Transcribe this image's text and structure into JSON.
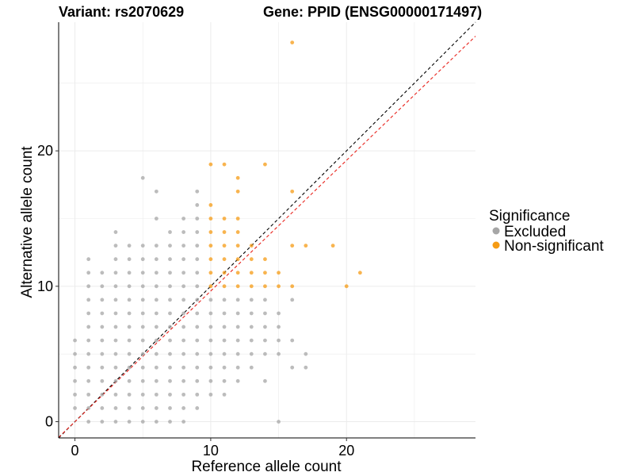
{
  "chart_data": {
    "type": "scatter",
    "title_left": "Variant: rs2070629",
    "title_right": "Gene: PPID (ENSG00000171497)",
    "xlabel": "Reference allele count",
    "ylabel": "Alternative allele count",
    "xlim": [
      -1.2,
      29.5
    ],
    "ylim": [
      -1.2,
      29.5
    ],
    "x_ticks": [
      0,
      10,
      20
    ],
    "y_ticks": [
      0,
      10,
      20
    ],
    "x_tick_labels": [
      "0",
      "10",
      "20"
    ],
    "y_tick_labels": [
      "0",
      "10",
      "20"
    ],
    "grid": true,
    "legend": {
      "title": "Significance",
      "position": "right",
      "entries": [
        {
          "label": "Excluded",
          "color": "#a6a6a6"
        },
        {
          "label": "Non-significant",
          "color": "#f59b14"
        }
      ]
    },
    "reference_lines": [
      {
        "name": "identity",
        "slope": 1,
        "intercept": 0,
        "color": "#000000",
        "dash": true
      },
      {
        "name": "fit",
        "slope": 0.965,
        "intercept": 0,
        "color": "#e8231c",
        "dash": true
      }
    ],
    "series": [
      {
        "name": "Excluded",
        "color": "#a6a6a6",
        "points": [
          [
            0,
            1
          ],
          [
            0,
            2
          ],
          [
            0,
            3
          ],
          [
            0,
            4
          ],
          [
            0,
            5
          ],
          [
            0,
            6
          ],
          [
            1,
            0
          ],
          [
            1,
            1
          ],
          [
            1,
            2
          ],
          [
            1,
            3
          ],
          [
            1,
            4
          ],
          [
            1,
            5
          ],
          [
            1,
            6
          ],
          [
            1,
            7
          ],
          [
            1,
            8
          ],
          [
            1,
            9
          ],
          [
            1,
            10
          ],
          [
            1,
            11
          ],
          [
            1,
            12
          ],
          [
            2,
            0
          ],
          [
            2,
            1
          ],
          [
            2,
            2
          ],
          [
            2,
            3
          ],
          [
            2,
            4
          ],
          [
            2,
            5
          ],
          [
            2,
            6
          ],
          [
            2,
            7
          ],
          [
            2,
            8
          ],
          [
            2,
            9
          ],
          [
            2,
            10
          ],
          [
            2,
            11
          ],
          [
            3,
            0
          ],
          [
            3,
            1
          ],
          [
            3,
            2
          ],
          [
            3,
            3
          ],
          [
            3,
            4
          ],
          [
            3,
            5
          ],
          [
            3,
            6
          ],
          [
            3,
            7
          ],
          [
            3,
            8
          ],
          [
            3,
            9
          ],
          [
            3,
            10
          ],
          [
            3,
            11
          ],
          [
            3,
            12
          ],
          [
            3,
            13
          ],
          [
            3,
            14
          ],
          [
            4,
            0
          ],
          [
            4,
            1
          ],
          [
            4,
            2
          ],
          [
            4,
            3
          ],
          [
            4,
            4
          ],
          [
            4,
            5
          ],
          [
            4,
            6
          ],
          [
            4,
            7
          ],
          [
            4,
            8
          ],
          [
            4,
            9
          ],
          [
            4,
            10
          ],
          [
            4,
            11
          ],
          [
            4,
            12
          ],
          [
            4,
            13
          ],
          [
            5,
            0
          ],
          [
            5,
            1
          ],
          [
            5,
            2
          ],
          [
            5,
            3
          ],
          [
            5,
            4
          ],
          [
            5,
            5
          ],
          [
            5,
            6
          ],
          [
            5,
            7
          ],
          [
            5,
            8
          ],
          [
            5,
            9
          ],
          [
            5,
            10
          ],
          [
            5,
            11
          ],
          [
            5,
            12
          ],
          [
            5,
            13
          ],
          [
            5,
            18
          ],
          [
            6,
            0
          ],
          [
            6,
            1
          ],
          [
            6,
            2
          ],
          [
            6,
            3
          ],
          [
            6,
            4
          ],
          [
            6,
            5
          ],
          [
            6,
            6
          ],
          [
            6,
            7
          ],
          [
            6,
            8
          ],
          [
            6,
            9
          ],
          [
            6,
            10
          ],
          [
            6,
            11
          ],
          [
            6,
            12
          ],
          [
            6,
            13
          ],
          [
            6,
            15
          ],
          [
            6,
            17
          ],
          [
            7,
            0
          ],
          [
            7,
            1
          ],
          [
            7,
            2
          ],
          [
            7,
            3
          ],
          [
            7,
            4
          ],
          [
            7,
            5
          ],
          [
            7,
            6
          ],
          [
            7,
            7
          ],
          [
            7,
            8
          ],
          [
            7,
            9
          ],
          [
            7,
            10
          ],
          [
            7,
            11
          ],
          [
            7,
            12
          ],
          [
            7,
            13
          ],
          [
            7,
            14
          ],
          [
            8,
            0
          ],
          [
            8,
            1
          ],
          [
            8,
            2
          ],
          [
            8,
            3
          ],
          [
            8,
            4
          ],
          [
            8,
            5
          ],
          [
            8,
            6
          ],
          [
            8,
            7
          ],
          [
            8,
            8
          ],
          [
            8,
            9
          ],
          [
            8,
            10
          ],
          [
            8,
            11
          ],
          [
            8,
            12
          ],
          [
            8,
            13
          ],
          [
            8,
            14
          ],
          [
            8,
            15
          ],
          [
            9,
            1
          ],
          [
            9,
            2
          ],
          [
            9,
            3
          ],
          [
            9,
            4
          ],
          [
            9,
            5
          ],
          [
            9,
            6
          ],
          [
            9,
            7
          ],
          [
            9,
            8
          ],
          [
            9,
            9
          ],
          [
            9,
            10
          ],
          [
            9,
            11
          ],
          [
            9,
            12
          ],
          [
            9,
            13
          ],
          [
            9,
            14
          ],
          [
            9,
            15
          ],
          [
            9,
            16
          ],
          [
            9,
            17
          ],
          [
            10,
            2
          ],
          [
            10,
            3
          ],
          [
            10,
            4
          ],
          [
            10,
            5
          ],
          [
            10,
            6
          ],
          [
            10,
            7
          ],
          [
            10,
            8
          ],
          [
            10,
            9
          ],
          [
            11,
            2
          ],
          [
            11,
            3
          ],
          [
            11,
            4
          ],
          [
            11,
            5
          ],
          [
            11,
            6
          ],
          [
            11,
            7
          ],
          [
            11,
            8
          ],
          [
            11,
            9
          ],
          [
            12,
            3
          ],
          [
            12,
            4
          ],
          [
            12,
            5
          ],
          [
            12,
            6
          ],
          [
            12,
            7
          ],
          [
            12,
            8
          ],
          [
            12,
            9
          ],
          [
            13,
            4
          ],
          [
            13,
            5
          ],
          [
            13,
            6
          ],
          [
            13,
            7
          ],
          [
            13,
            8
          ],
          [
            13,
            9
          ],
          [
            14,
            3
          ],
          [
            14,
            5
          ],
          [
            14,
            6
          ],
          [
            14,
            7
          ],
          [
            14,
            8
          ],
          [
            14,
            9
          ],
          [
            15,
            0
          ],
          [
            15,
            5
          ],
          [
            15,
            6
          ],
          [
            15,
            7
          ],
          [
            15,
            8
          ],
          [
            16,
            4
          ],
          [
            16,
            6
          ],
          [
            16,
            9
          ],
          [
            17,
            4
          ],
          [
            17,
            5
          ]
        ]
      },
      {
        "name": "Non-significant",
        "color": "#f59b14",
        "points": [
          [
            10,
            10
          ],
          [
            10,
            11
          ],
          [
            10,
            12
          ],
          [
            10,
            13
          ],
          [
            10,
            14
          ],
          [
            10,
            15
          ],
          [
            10,
            16
          ],
          [
            10,
            19
          ],
          [
            11,
            10
          ],
          [
            11,
            11
          ],
          [
            11,
            12
          ],
          [
            11,
            13
          ],
          [
            11,
            14
          ],
          [
            11,
            15
          ],
          [
            11,
            19
          ],
          [
            12,
            10
          ],
          [
            12,
            11
          ],
          [
            12,
            12
          ],
          [
            12,
            13
          ],
          [
            12,
            14
          ],
          [
            12,
            15
          ],
          [
            12,
            17
          ],
          [
            12,
            18
          ],
          [
            13,
            10
          ],
          [
            13,
            11
          ],
          [
            13,
            12
          ],
          [
            13,
            13
          ],
          [
            14,
            10
          ],
          [
            14,
            11
          ],
          [
            14,
            12
          ],
          [
            14,
            19
          ],
          [
            15,
            10
          ],
          [
            15,
            11
          ],
          [
            16,
            10
          ],
          [
            16,
            13
          ],
          [
            16,
            17
          ],
          [
            16,
            28
          ],
          [
            17,
            13
          ],
          [
            19,
            13
          ],
          [
            20,
            10
          ],
          [
            21,
            11
          ]
        ]
      }
    ]
  }
}
